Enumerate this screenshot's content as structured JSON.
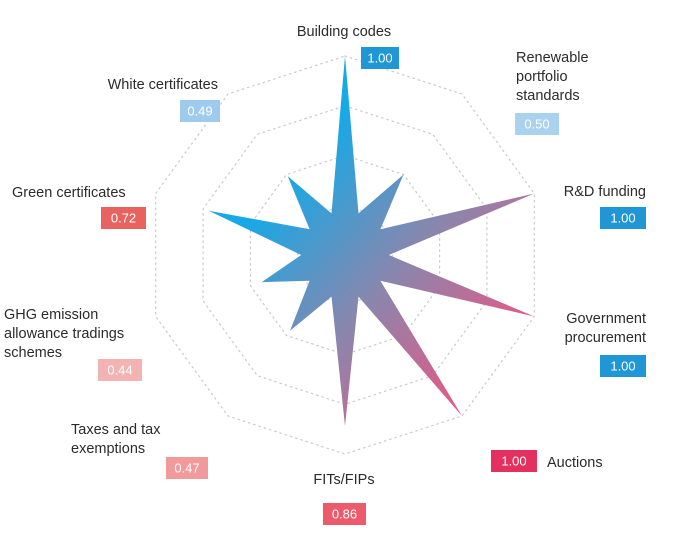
{
  "chart_data": {
    "type": "radar",
    "title": "",
    "rmax": 1.0,
    "grid": true,
    "categories": [
      "Building codes",
      "Renewable portfolio standards",
      "R&D funding",
      "Government procurement",
      "Auctions",
      "FITs/FIPs",
      "Taxes and tax exemptions",
      "GHG emission allowance tradings schemes",
      "Green certificates",
      "White certificates"
    ],
    "label_lines": [
      [
        "Building codes"
      ],
      [
        "Renewable",
        "portfolio",
        "standards"
      ],
      [
        "R&D funding"
      ],
      [
        "Government",
        "procurement"
      ],
      [
        "Auctions"
      ],
      [
        "FITs/FIPs"
      ],
      [
        "Taxes and tax",
        "exemptions"
      ],
      [
        "GHG emission",
        "allowance tradings",
        "schemes"
      ],
      [
        "Green certificates"
      ],
      [
        "White certificates"
      ]
    ],
    "values": [
      1.0,
      0.5,
      1.0,
      1.0,
      1.0,
      0.86,
      0.47,
      0.44,
      0.72,
      0.49
    ],
    "value_labels": [
      "1.00",
      "0.50",
      "1.00",
      "1.00",
      "1.00",
      "0.86",
      "0.47",
      "0.44",
      "0.72",
      "0.49"
    ],
    "badge_colors": [
      "#1f97d4",
      "#a9d2ee",
      "#1f97d4",
      "#1f97d4",
      "#e3305f",
      "#eb5b6b",
      "#f2999b",
      "#f4b3b3",
      "#e8625f",
      "#9ecbed"
    ],
    "fill_gradient": [
      "#16a9e6",
      "#8a86ad",
      "#ec5582"
    ]
  }
}
